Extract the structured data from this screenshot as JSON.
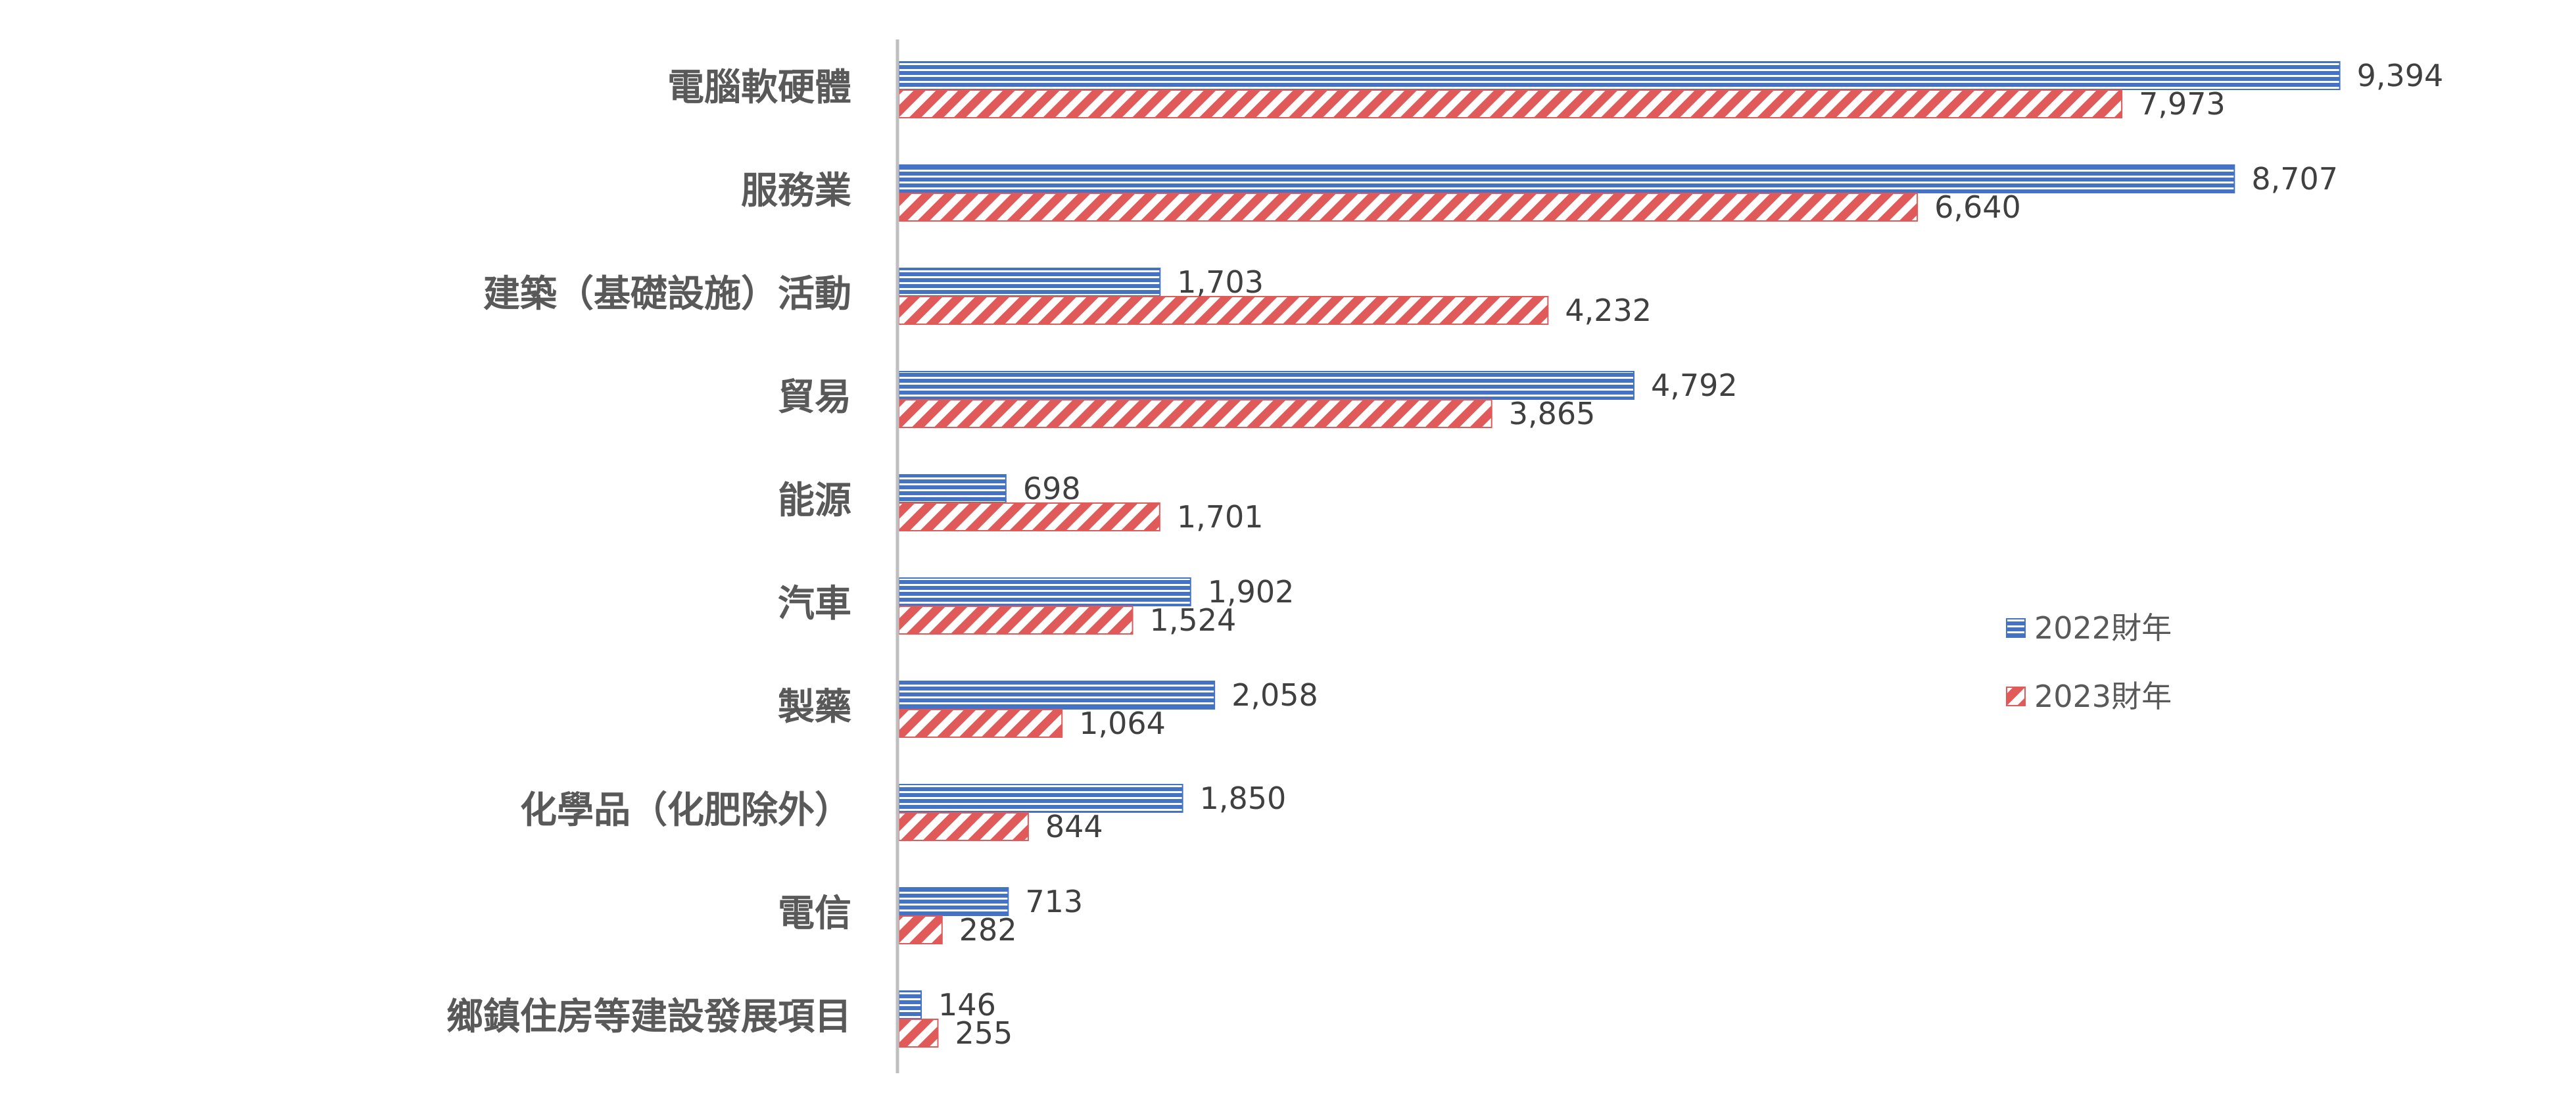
{
  "chart_data": {
    "type": "bar",
    "orientation": "horizontal",
    "categories": [
      "電腦軟硬體",
      "服務業",
      "建築（基礎設施）活動",
      "貿易",
      "能源",
      "汽車",
      "製藥",
      "化學品（化肥除外）",
      "電信",
      "鄉鎮住房等建設發展項目"
    ],
    "series": [
      {
        "name": "2022財年",
        "values": [
          9394,
          8707,
          1703,
          4792,
          698,
          1902,
          2058,
          1850,
          713,
          146
        ],
        "value_labels": [
          "9,394",
          "8,707",
          "1,703",
          "4,792",
          "698",
          "1,902",
          "2,058",
          "1,850",
          "713",
          "146"
        ],
        "color": "#4472C4",
        "pattern": "horizontal-lines"
      },
      {
        "name": "2023財年",
        "values": [
          7973,
          6640,
          4232,
          3865,
          1701,
          1524,
          1064,
          844,
          282,
          255
        ],
        "value_labels": [
          "7,973",
          "6,640",
          "4,232",
          "3,865",
          "1,701",
          "1,524",
          "1,064",
          "844",
          "282",
          "255"
        ],
        "color": "#E05A5A",
        "pattern": "diagonal-stripes"
      }
    ],
    "xlim": [
      0,
      10000
    ],
    "grid": false,
    "legend": "right",
    "data_labels": true
  }
}
